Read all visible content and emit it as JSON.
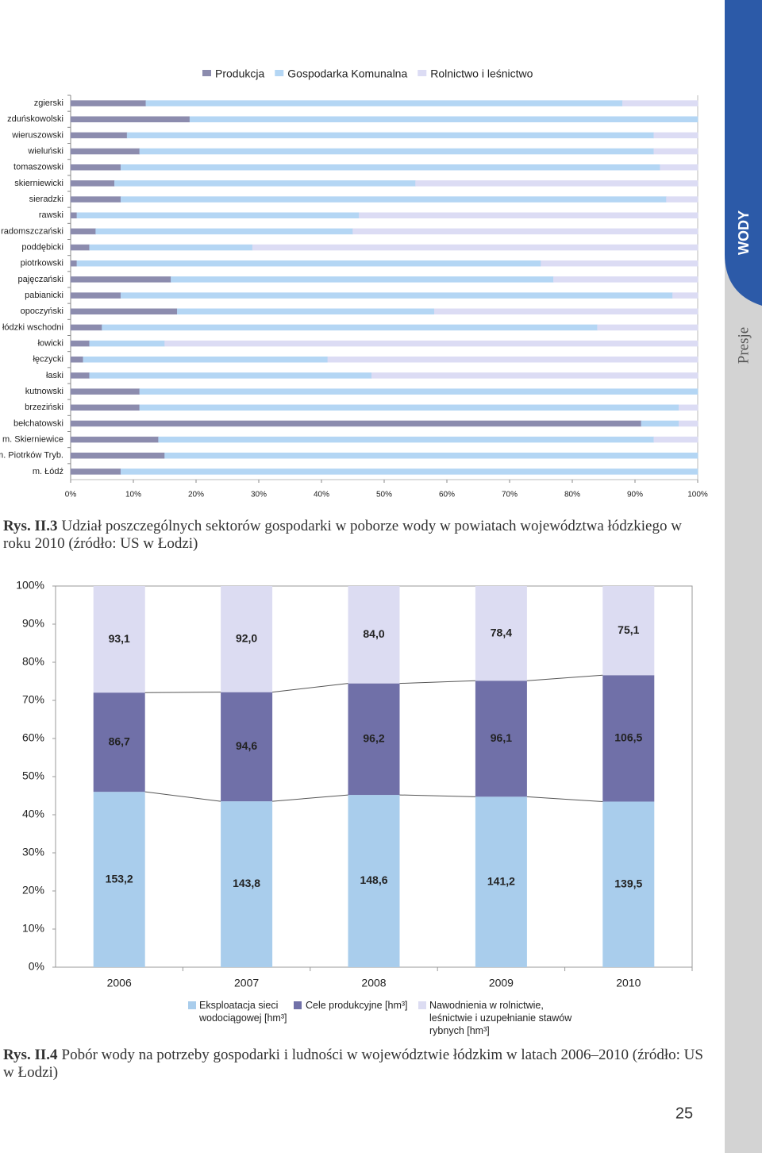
{
  "side_tab": {
    "section": "WODY",
    "subsection": "Presje"
  },
  "chart_data": [
    {
      "type": "bar",
      "orientation": "horizontal",
      "stacked": true,
      "legend": "top",
      "categories": [
        "zgierski",
        "zduńskowolski",
        "wieruszowski",
        "wieluński",
        "tomaszowski",
        "skierniewicki",
        "sieradzki",
        "rawski",
        "radomszczański",
        "poddębicki",
        "piotrkowski",
        "pajęczański",
        "pabianicki",
        "opoczyński",
        "łódzki wschodni",
        "łowicki",
        "łęczycki",
        "łaski",
        "kutnowski",
        "brzeziński",
        "bełchatowski",
        "m. Skierniewice",
        "m. Piotrków Tryb.",
        "m. Łódź"
      ],
      "series": [
        {
          "name": "Produkcja",
          "color": "#8c8cae",
          "values": [
            12,
            19,
            9,
            11,
            8,
            7,
            8,
            1,
            4,
            3,
            1,
            16,
            8,
            17,
            5,
            3,
            2,
            3,
            11,
            11,
            91,
            14,
            15,
            8
          ]
        },
        {
          "name": "Gospodarka Komunalna",
          "color": "#b4d6f4",
          "values": [
            76,
            81,
            84,
            82,
            86,
            48,
            87,
            45,
            41,
            26,
            74,
            61,
            88,
            41,
            79,
            12,
            39,
            45,
            89,
            86,
            6,
            79,
            85,
            92
          ]
        },
        {
          "name": "Rolnictwo i leśnictwo",
          "color": "#dcdcf4",
          "values": [
            12,
            0,
            7,
            7,
            6,
            45,
            5,
            54,
            55,
            71,
            25,
            23,
            4,
            42,
            16,
            85,
            59,
            52,
            0,
            3,
            3,
            7,
            0,
            0
          ]
        }
      ],
      "xlim": [
        0,
        100
      ],
      "xticks": [
        {
          "value": 0,
          "label": "0%"
        },
        {
          "value": 10,
          "label": "10%"
        },
        {
          "value": 20,
          "label": "20%"
        },
        {
          "value": 30,
          "label": "30%"
        },
        {
          "value": 40,
          "label": "40%"
        },
        {
          "value": 50,
          "label": "50%"
        },
        {
          "value": 60,
          "label": "60%"
        },
        {
          "value": 70,
          "label": "70%"
        },
        {
          "value": 80,
          "label": "80%"
        },
        {
          "value": 90,
          "label": "90%"
        },
        {
          "value": 100,
          "label": "100%"
        }
      ]
    },
    {
      "type": "bar",
      "orientation": "vertical",
      "stacked": "percent",
      "legend": "bottom",
      "series_lines": true,
      "categories": [
        "2006",
        "2007",
        "2008",
        "2009",
        "2010"
      ],
      "series": [
        {
          "name": "Eksploatacja sieci wodociągowej [hm³]",
          "color": "#a9cdec",
          "values": [
            153.2,
            143.8,
            148.6,
            141.2,
            139.5
          ],
          "value_labels": [
            "153,2",
            "143,8",
            "148,6",
            "141,2",
            "139,5"
          ]
        },
        {
          "name": "Cele produkcyjne [hm³]",
          "color": "#7070a8",
          "values": [
            86.7,
            94.6,
            96.2,
            96.1,
            106.5
          ],
          "value_labels": [
            "86,7",
            "94,6",
            "96,2",
            "96,1",
            "106,5"
          ]
        },
        {
          "name": "Nawodnienia w rolnictwie, leśnictwie i uzupełnianie stawów rybnych [hm³]",
          "color": "#dcdcf2",
          "values": [
            93.1,
            92.0,
            84.0,
            78.4,
            75.1
          ],
          "value_labels": [
            "93,1",
            "92,0",
            "84,0",
            "78,4",
            "75,1"
          ]
        }
      ],
      "ylim": [
        0,
        100
      ],
      "yticks": [
        {
          "value": 0,
          "label": "0%"
        },
        {
          "value": 10,
          "label": "10%"
        },
        {
          "value": 20,
          "label": "20%"
        },
        {
          "value": 30,
          "label": "30%"
        },
        {
          "value": 40,
          "label": "40%"
        },
        {
          "value": 50,
          "label": "50%"
        },
        {
          "value": 60,
          "label": "60%"
        },
        {
          "value": 70,
          "label": "70%"
        },
        {
          "value": 80,
          "label": "80%"
        },
        {
          "value": 90,
          "label": "90%"
        },
        {
          "value": 100,
          "label": "100%"
        }
      ]
    }
  ],
  "captions": [
    {
      "label": "Rys. II.3",
      "text": "Udział poszczególnych sektorów gospodarki w poborze wody w powiatach województwa łódzkiego w roku 2010 (źródło: US w Łodzi)"
    },
    {
      "label": "Rys. II.4",
      "text": "Pobór wody na potrzeby gospodarki i ludności w województwie łódzkim w latach 2006–2010 (źródło: US w Łodzi)"
    }
  ],
  "page_number": 25
}
